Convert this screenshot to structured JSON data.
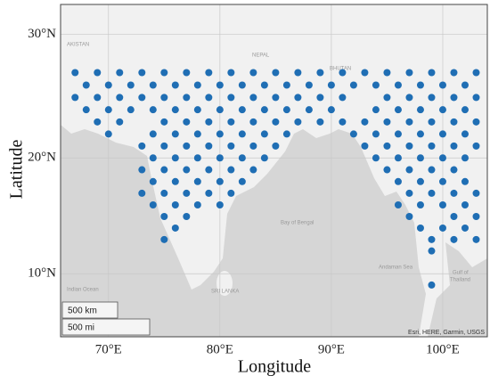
{
  "chart_data": {
    "type": "scatter",
    "xlabel": "Longitude",
    "ylabel": "Latitude",
    "color": "#1f6eb4",
    "grid": true,
    "xlim": [
      65.7,
      104
    ],
    "ylim": [
      4.4,
      32.3
    ],
    "xticks": [
      {
        "value": 70,
        "label": "70°E"
      },
      {
        "value": 80,
        "label": "80°E"
      },
      {
        "value": 90,
        "label": "90°E"
      },
      {
        "value": 100,
        "label": "100°E"
      }
    ],
    "yticks": [
      {
        "value": 10,
        "label": "10°N"
      },
      {
        "value": 20,
        "label": "20°N"
      },
      {
        "value": 30,
        "label": "30°N"
      }
    ],
    "x": [
      67,
      69,
      71,
      73,
      75,
      77,
      79,
      81,
      83,
      85,
      87,
      89,
      91,
      93,
      95,
      97,
      99,
      101,
      103,
      68,
      70,
      72,
      74,
      76,
      78,
      80,
      82,
      84,
      86,
      88,
      90,
      92,
      94,
      96,
      98,
      100,
      102,
      67,
      69,
      71,
      73,
      75,
      77,
      79,
      81,
      83,
      85,
      87,
      89,
      91,
      95,
      97,
      99,
      101,
      103,
      68,
      70,
      72,
      74,
      76,
      78,
      80,
      82,
      84,
      86,
      88,
      90,
      94,
      96,
      98,
      100,
      102,
      69,
      71,
      75,
      77,
      79,
      81,
      83,
      85,
      87,
      89,
      91,
      93,
      95,
      97,
      99,
      101,
      103,
      70,
      74,
      76,
      78,
      80,
      82,
      84,
      86,
      92,
      94,
      96,
      98,
      100,
      102,
      73,
      75,
      77,
      79,
      81,
      83,
      85,
      93,
      95,
      97,
      99,
      101,
      103,
      74,
      76,
      78,
      80,
      82,
      84,
      94,
      96,
      98,
      100,
      102,
      73,
      75,
      77,
      79,
      81,
      83,
      95,
      97,
      99,
      101,
      74,
      76,
      78,
      80,
      82,
      96,
      98,
      100,
      102,
      73,
      75,
      77,
      79,
      81,
      97,
      99,
      101,
      103,
      74,
      76,
      78,
      80,
      96,
      98,
      100,
      102,
      75,
      77,
      97,
      101,
      103,
      76,
      98,
      100,
      102,
      75,
      99,
      101,
      103,
      99,
      99
    ],
    "y": [
      27,
      27,
      27,
      27,
      27,
      27,
      27,
      27,
      27,
      27,
      27,
      27,
      27,
      27,
      27,
      27,
      27,
      27,
      27,
      26,
      26,
      26,
      26,
      26,
      26,
      26,
      26,
      26,
      26,
      26,
      26,
      26,
      26,
      26,
      26,
      26,
      26,
      25,
      25,
      25,
      25,
      25,
      25,
      25,
      25,
      25,
      25,
      25,
      25,
      25,
      25,
      25,
      25,
      25,
      25,
      24,
      24,
      24,
      24,
      24,
      24,
      24,
      24,
      24,
      24,
      24,
      24,
      24,
      24,
      24,
      24,
      24,
      23,
      23,
      23,
      23,
      23,
      23,
      23,
      23,
      23,
      23,
      23,
      23,
      23,
      23,
      23,
      23,
      23,
      22,
      22,
      22,
      22,
      22,
      22,
      22,
      22,
      22,
      22,
      22,
      22,
      22,
      22,
      21,
      21,
      21,
      21,
      21,
      21,
      21,
      21,
      21,
      21,
      21,
      21,
      21,
      20,
      20,
      20,
      20,
      20,
      20,
      20,
      20,
      20,
      20,
      20,
      19,
      19,
      19,
      19,
      19,
      19,
      19,
      19,
      19,
      19,
      18,
      18,
      18,
      18,
      18,
      18,
      18,
      18,
      18,
      17,
      17,
      17,
      17,
      17,
      17,
      17,
      17,
      17,
      16,
      16,
      16,
      16,
      16,
      16,
      16,
      16,
      15,
      15,
      15,
      15,
      15,
      14,
      14,
      14,
      14,
      13,
      13,
      13,
      13,
      12,
      9
    ],
    "annotations": [
      "AKISTAN",
      "NEPAL",
      "BHUTAN",
      "Bay of Bengal",
      "Indian Ocean",
      "SRI LANKA",
      "Andaman Sea",
      "Gulf of",
      "Thailand"
    ],
    "scale_labels": [
      "500 km",
      "500 mi"
    ],
    "attribution": "Esri, HERE, Garmin, USGS"
  }
}
